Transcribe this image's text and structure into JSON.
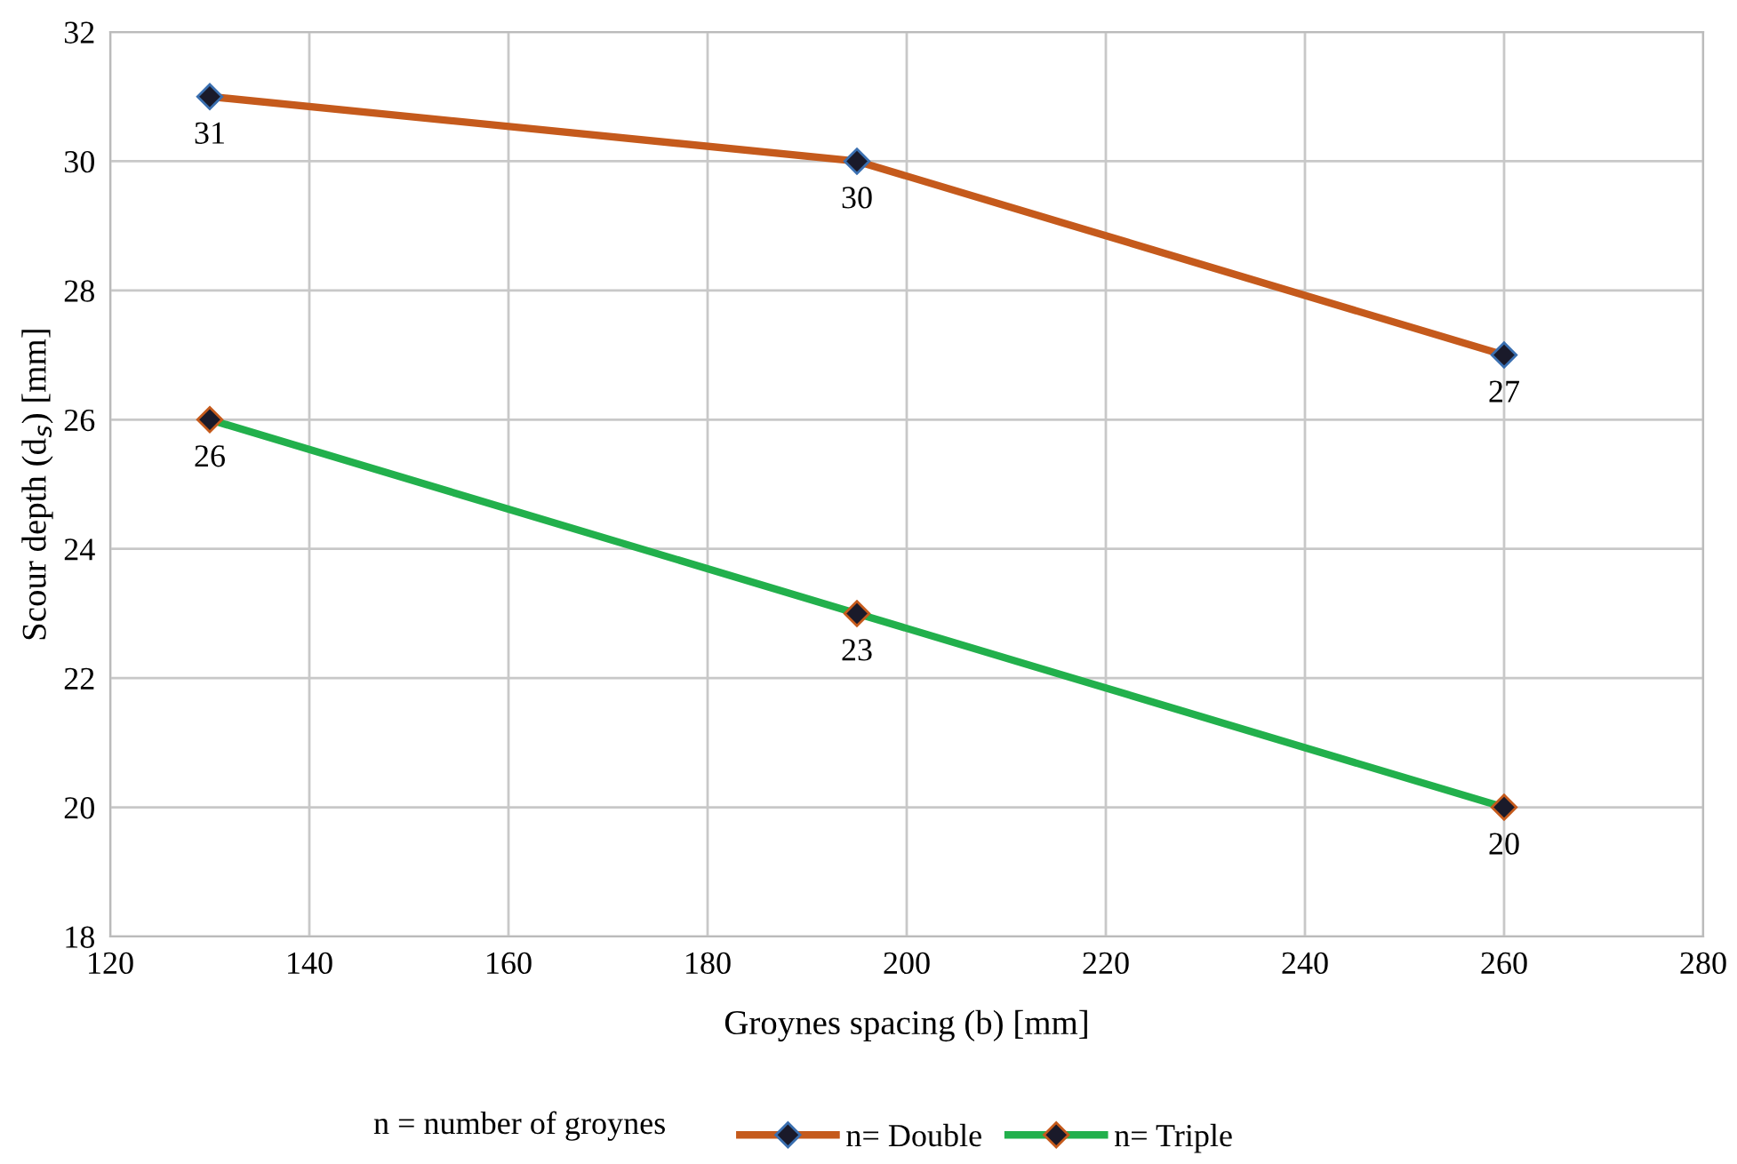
{
  "chart_data": {
    "type": "line",
    "xlabel": "Groynes spacing (b) [mm]",
    "ylabel": "Scour depth (d$_{s}$) [mm]",
    "x": [
      130,
      195,
      260
    ],
    "series": [
      {
        "name": "n= Double",
        "color": "#c55a1c",
        "values": [
          31,
          30,
          27
        ]
      },
      {
        "name": "n= Triple",
        "color": "#22b04c",
        "values": [
          26,
          23,
          20
        ]
      }
    ],
    "xlim": [
      120,
      280
    ],
    "xticks": [
      120,
      140,
      160,
      180,
      200,
      220,
      240,
      260,
      280
    ],
    "ylim": [
      18,
      32
    ],
    "yticks": [
      18,
      20,
      22,
      24,
      26,
      28,
      30,
      32
    ],
    "grid": true,
    "legend": "bottom",
    "marker": "diamond",
    "line_style": "solid",
    "data_labels": true,
    "annotations": [
      "n = number of groynes"
    ]
  }
}
